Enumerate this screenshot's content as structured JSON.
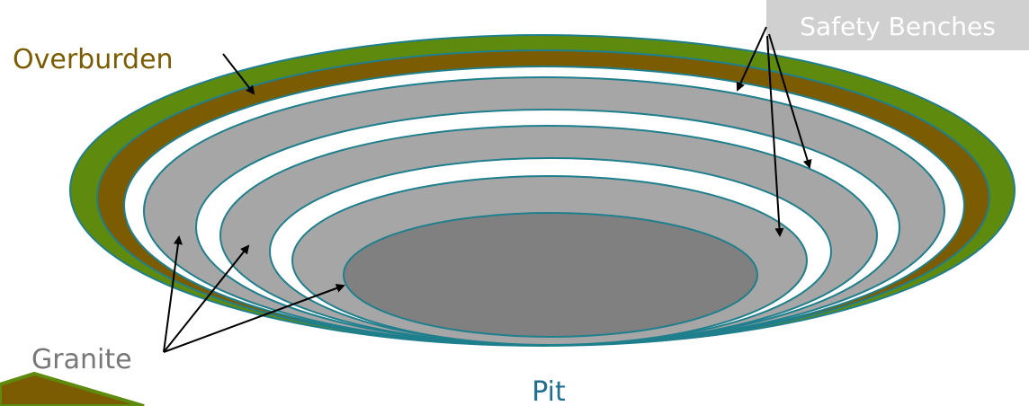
{
  "labels": {
    "overburden": "Overburden",
    "safety_benches": "Safety Benches",
    "granite": "Granite",
    "pit": "Pit"
  }
}
